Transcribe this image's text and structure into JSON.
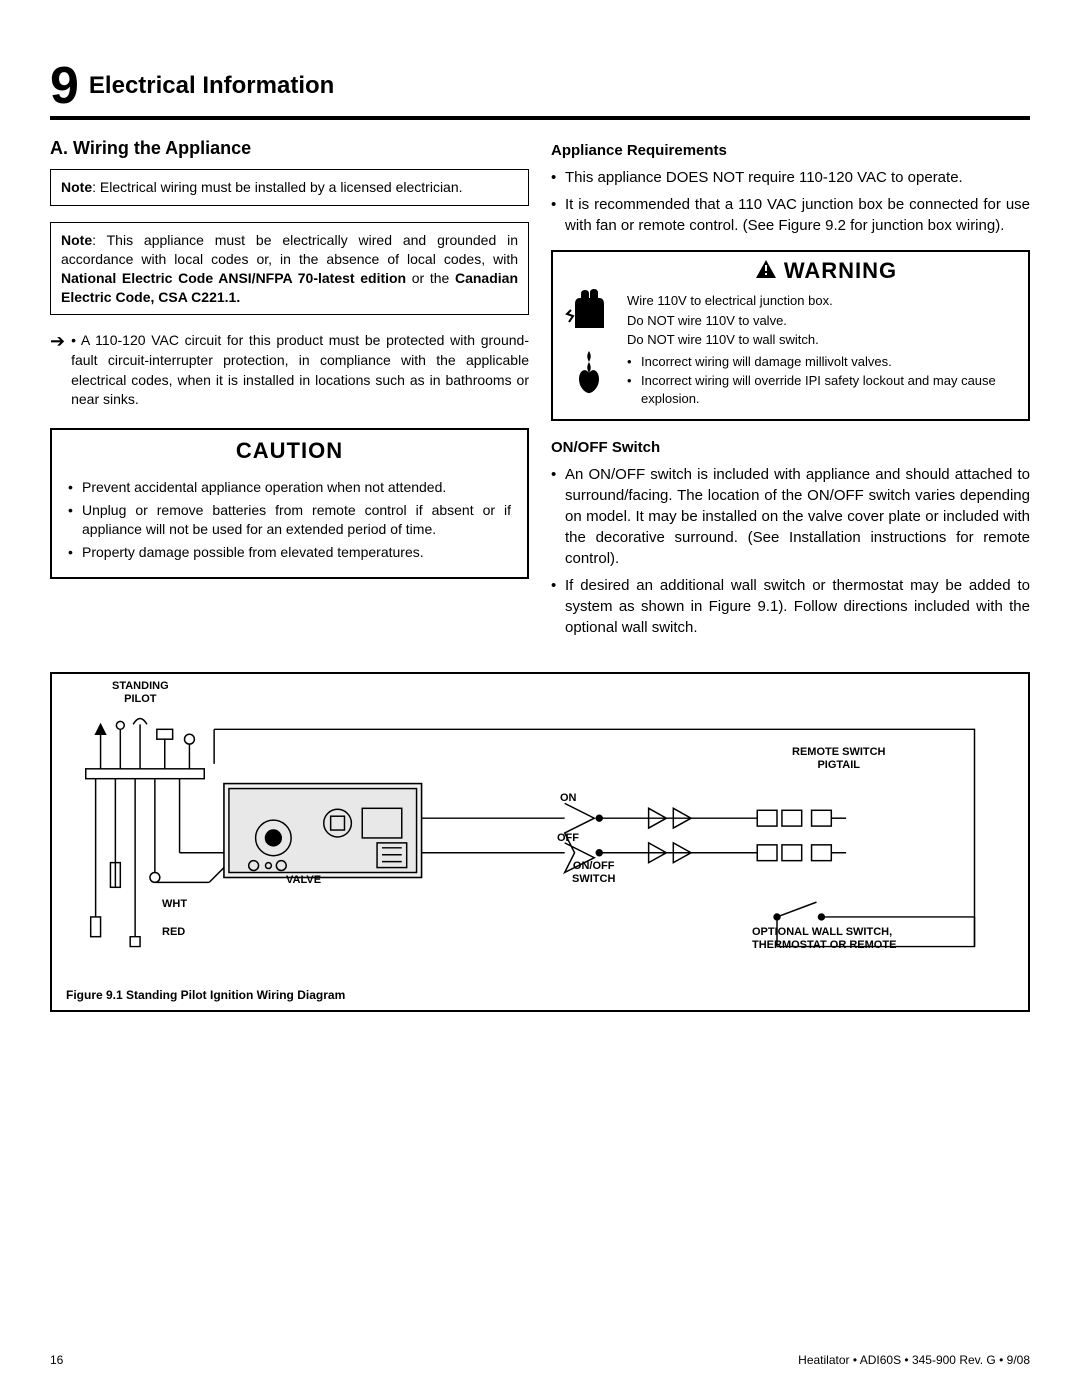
{
  "section": {
    "number": "9",
    "title": "Electrical Information"
  },
  "left": {
    "subhead_a": "A.  Wiring the Appliance",
    "note1_lead": "Note",
    "note1_text": ": Electrical wiring must be installed by a licensed electrician.",
    "note2_lead": "Note",
    "note2_text": ": This appliance must be electrically wired and grounded in accordance with local codes or, in the absence of local codes, with ",
    "note2_bold1": "National Electric Code ANSI/NFPA 70-latest edition",
    "note2_mid": " or the ",
    "note2_bold2": "Canadian Electric Code, CSA C221.1.",
    "arrow_text": "A 110-120 VAC circuit for this product must be protected with ground-fault circuit-interrupter protection, in compliance with the applicable electrical codes, when it is installed in locations such as in bathrooms or near sinks.",
    "caution_title": "CAUTION",
    "caution_items": [
      "Prevent accidental appliance operation when not attended.",
      "Unplug or remove batteries from remote control if absent or if appliance will not be used for an extended period of time.",
      "Property damage possible from elevated temperatures."
    ]
  },
  "right": {
    "appreq_head": "Appliance Requirements",
    "appreq_items": [
      "This appliance DOES NOT require 110-120 VAC to operate.",
      "It is recommended that a 110 VAC junction box be connected for use with fan or remote control. (See Figure 9.2 for junction box wiring)."
    ],
    "warning_title": "WARNING",
    "warn_line1": "Wire 110V to electrical junction box.",
    "warn_line2": "Do NOT wire 110V to valve.",
    "warn_line3": "Do NOT wire 110V to wall switch.",
    "warn_items": [
      "Incorrect wiring will damage millivolt valves.",
      "Incorrect wiring will override IPI safety lockout and may cause explosion."
    ],
    "onoff_head": "ON/OFF Switch",
    "onoff_items": [
      "An ON/OFF switch is included with appliance and should attached to surround/facing. The location of the ON/OFF switch varies depending on model.  It may be installed on the valve cover plate or included with the decorative surround. (See Installation instructions for remote control).",
      " If desired an additional wall switch or thermostat may be added to system as shown in Figure 9.1).  Follow directions included with the optional wall switch."
    ]
  },
  "diagram": {
    "caption": "Figure 9.1  Standing Pilot Ignition Wiring Diagram",
    "labels": {
      "standing_pilot": "STANDING\nPILOT",
      "valve": "VALVE",
      "wht": "WHT",
      "red": "RED",
      "on": "ON",
      "off": "OFF",
      "onoff_switch": "ON/OFF\nSWITCH",
      "remote_switch": "REMOTE SWITCH\nPIGTAIL",
      "optional": "OPTIONAL WALL SWITCH,\nTHERMOSTAT OR REMOTE"
    }
  },
  "footer": {
    "page": "16",
    "info": "Heatilator  •  ADI60S  •  345-900 Rev. G  •  9/08"
  }
}
